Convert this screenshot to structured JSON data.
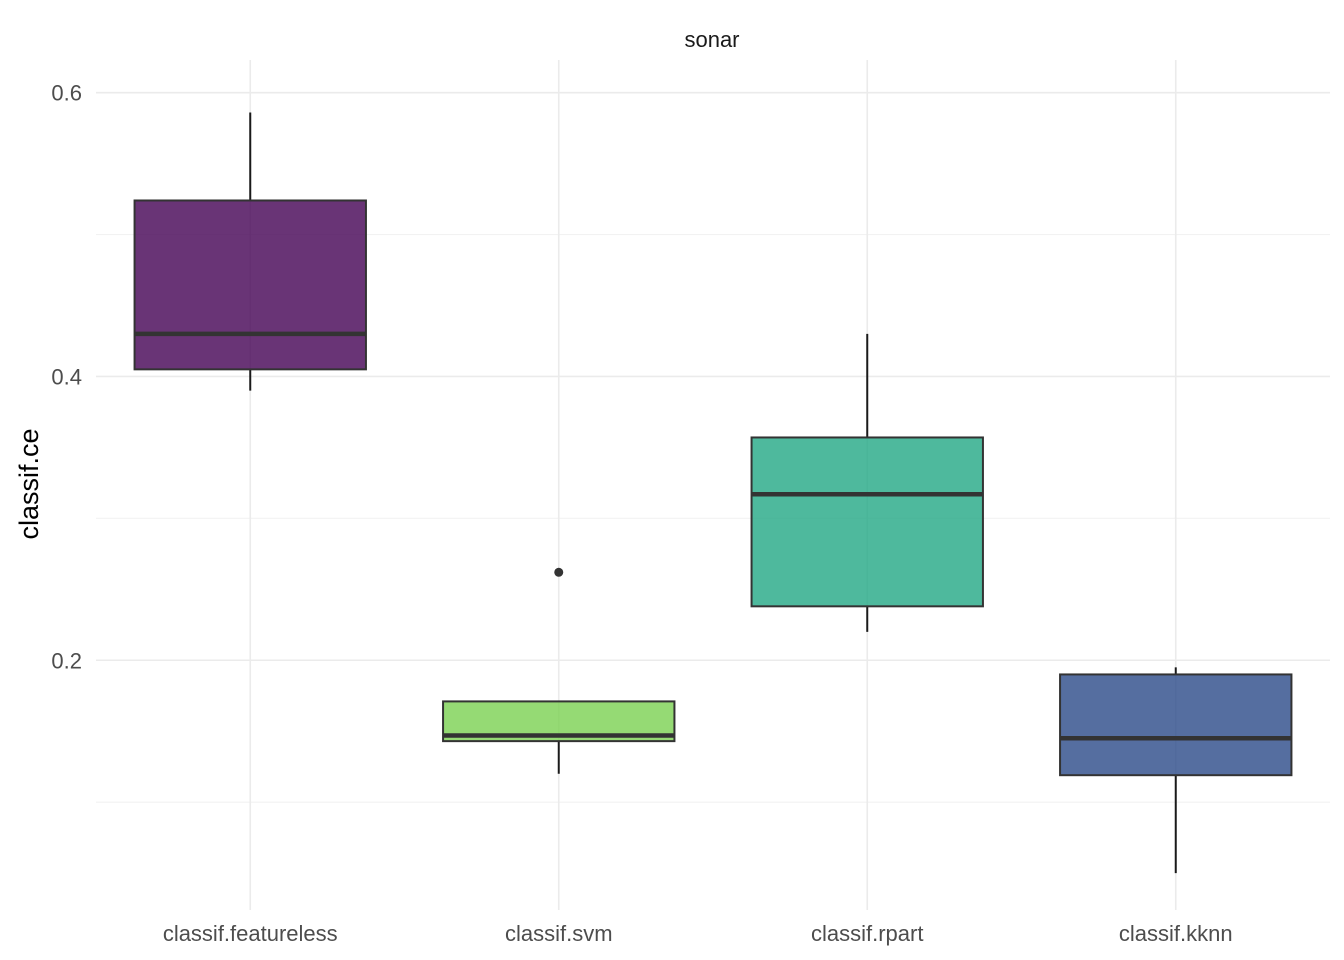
{
  "chart_data": {
    "type": "box",
    "title": "sonar",
    "xlabel": "",
    "ylabel": "classif.ce",
    "ylim": [
      0.024,
      0.623
    ],
    "yticks": [
      0.2,
      0.4,
      0.6
    ],
    "ytick_labels": [
      "0.2",
      "0.4",
      "0.6"
    ],
    "yminor": [
      0.1,
      0.3,
      0.5
    ],
    "grid": true,
    "legend": "none",
    "categories": [
      "classif.featureless",
      "classif.svm",
      "classif.rpart",
      "classif.kknn"
    ],
    "boxes": [
      {
        "name": "classif.featureless",
        "color": "#440154",
        "whisker_low": 0.39,
        "q1": 0.405,
        "median": 0.43,
        "q3": 0.524,
        "whisker_high": 0.586,
        "outliers": []
      },
      {
        "name": "classif.svm",
        "color": "#7AD151",
        "whisker_low": 0.12,
        "q1": 0.143,
        "median": 0.147,
        "q3": 0.171,
        "whisker_high": 0.171,
        "outliers": [
          0.262
        ]
      },
      {
        "name": "classif.rpart",
        "color": "#22A884",
        "whisker_low": 0.22,
        "q1": 0.238,
        "median": 0.317,
        "q3": 0.357,
        "whisker_high": 0.43,
        "outliers": []
      },
      {
        "name": "classif.kknn",
        "color": "#2A4A88",
        "whisker_low": 0.05,
        "q1": 0.119,
        "median": 0.145,
        "q3": 0.19,
        "whisker_high": 0.195,
        "outliers": []
      }
    ]
  }
}
